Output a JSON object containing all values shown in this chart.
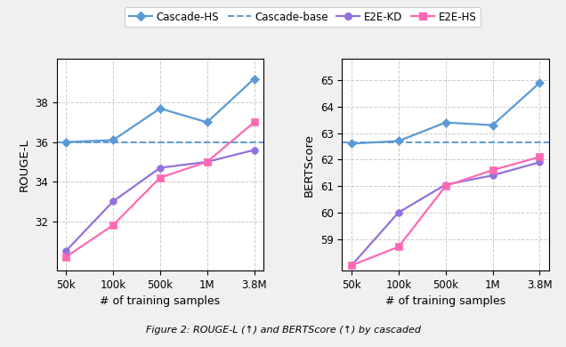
{
  "x_labels": [
    "50k",
    "100k",
    "500k",
    "1M",
    "3.8M"
  ],
  "x_positions": [
    0,
    1,
    2,
    3,
    4
  ],
  "rouge_cascade_hs": [
    36.0,
    36.1,
    37.7,
    37.0,
    39.2
  ],
  "rouge_cascade_base": 36.0,
  "rouge_e2e_kd": [
    30.5,
    33.0,
    34.7,
    35.0,
    35.6
  ],
  "rouge_e2e_hs": [
    30.2,
    31.8,
    34.2,
    35.0,
    37.0
  ],
  "bert_cascade_hs": [
    62.6,
    62.7,
    63.4,
    63.3,
    64.9
  ],
  "bert_cascade_base": 62.65,
  "bert_e2e_kd": [
    58.0,
    60.0,
    61.05,
    61.4,
    61.9
  ],
  "bert_e2e_hs": [
    58.0,
    58.7,
    61.0,
    61.6,
    62.1
  ],
  "color_cascade_hs": "#5B9BD5",
  "color_cascade_base": "#5B9BD5",
  "color_e2e_kd": "#9370DB",
  "color_e2e_hs": "#FF69B4",
  "rouge_ylim": [
    29.5,
    40.2
  ],
  "rouge_yticks": [
    32,
    34,
    36,
    38
  ],
  "bert_ylim": [
    57.8,
    65.8
  ],
  "bert_yticks": [
    59,
    60,
    61,
    62,
    63,
    64,
    65
  ],
  "xlabel": "# of training samples",
  "ylabel_left": "ROUGE-L",
  "ylabel_right": "BERTScore",
  "legend_labels": [
    "Cascade-HS",
    "Cascade-base",
    "E2E-KD",
    "E2E-HS"
  ],
  "fig_facecolor": "#F0F0F0",
  "ax_facecolor": "#FFFFFF",
  "caption": "Figure 2: ROUGE-L (↑) and BERTScore (↑) by cascaded"
}
